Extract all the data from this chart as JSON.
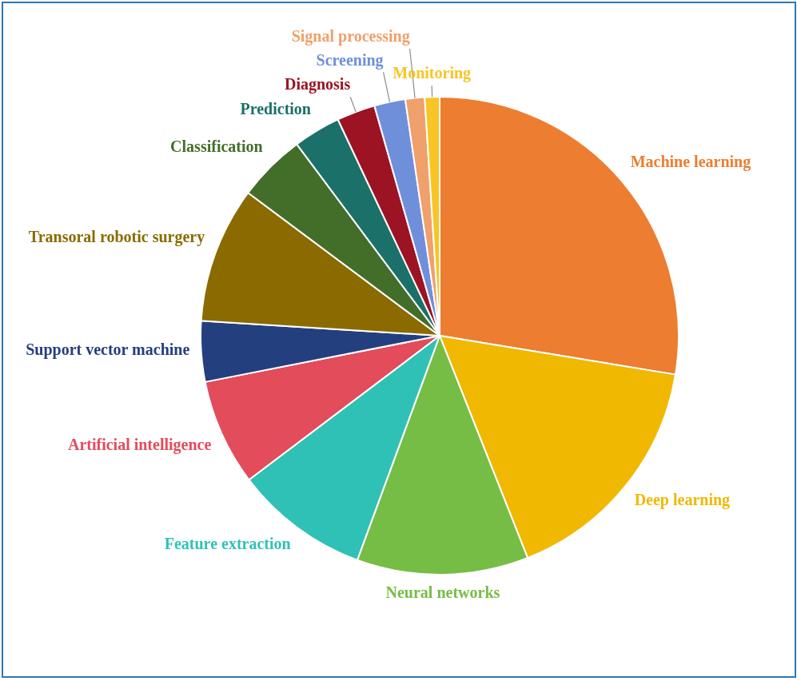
{
  "chart_data": {
    "type": "pie",
    "legend": false,
    "categories": [
      "Machine learning",
      "Deep learning",
      "Neural networks",
      "Feature extraction",
      "Artificial intelligence",
      "Support vector machine",
      "Transoral robotic surgery",
      "Classification",
      "Prediction",
      "Diagnosis",
      "Screening",
      "Signal processing",
      "Monitoring"
    ],
    "values": [
      27.6,
      16.4,
      11.6,
      9.1,
      7.2,
      4.1,
      9.2,
      4.6,
      3.2,
      2.6,
      2.1,
      1.3,
      1.0
    ],
    "colors": [
      "#ed7d31",
      "#f0b800",
      "#76bd45",
      "#30c1b6",
      "#e34c5b",
      "#233f7e",
      "#8b6b00",
      "#426e2a",
      "#1b706a",
      "#9c1424",
      "#6f8fdb",
      "#f0a06a",
      "#f7c525"
    ]
  }
}
